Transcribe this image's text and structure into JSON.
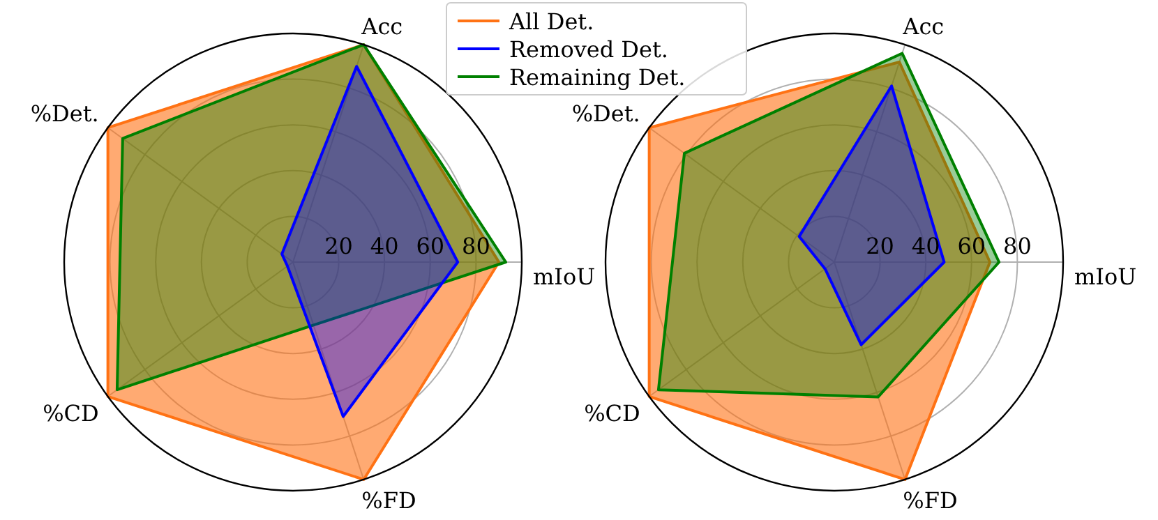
{
  "chart_data": [
    {
      "type": "radar",
      "categories": [
        "Acc",
        "mIoU",
        "%FD",
        "%CD",
        "%Det."
      ],
      "ylim": [
        0,
        100
      ],
      "yticks": [
        20,
        40,
        60,
        80
      ],
      "grid": true,
      "legend": "top right",
      "series": [
        {
          "name": "All Det.",
          "color": "#ff7214",
          "values": [
            100,
            90,
            100,
            100,
            100
          ]
        },
        {
          "name": "Removed Det.",
          "color": "#0000ff",
          "values": [
            90,
            72,
            71,
            3,
            6
          ]
        },
        {
          "name": "Remaining Det.",
          "color": "#008000",
          "values": [
            100,
            93,
            29,
            95,
            92
          ]
        }
      ]
    },
    {
      "type": "radar",
      "categories": [
        "Acc",
        "mIoU",
        "%FD",
        "%CD",
        "%Det."
      ],
      "ylim": [
        0,
        100
      ],
      "yticks": [
        20,
        40,
        60,
        80
      ],
      "grid": true,
      "series": [
        {
          "color": "#ff7214",
          "values": [
            92,
            68,
            100,
            100,
            100
          ]
        },
        {
          "color": "#0000ff",
          "values": [
            81,
            48,
            38,
            5,
            19
          ]
        },
        {
          "color": "#008000",
          "values": [
            96,
            72,
            62,
            95,
            81
          ]
        }
      ]
    }
  ]
}
